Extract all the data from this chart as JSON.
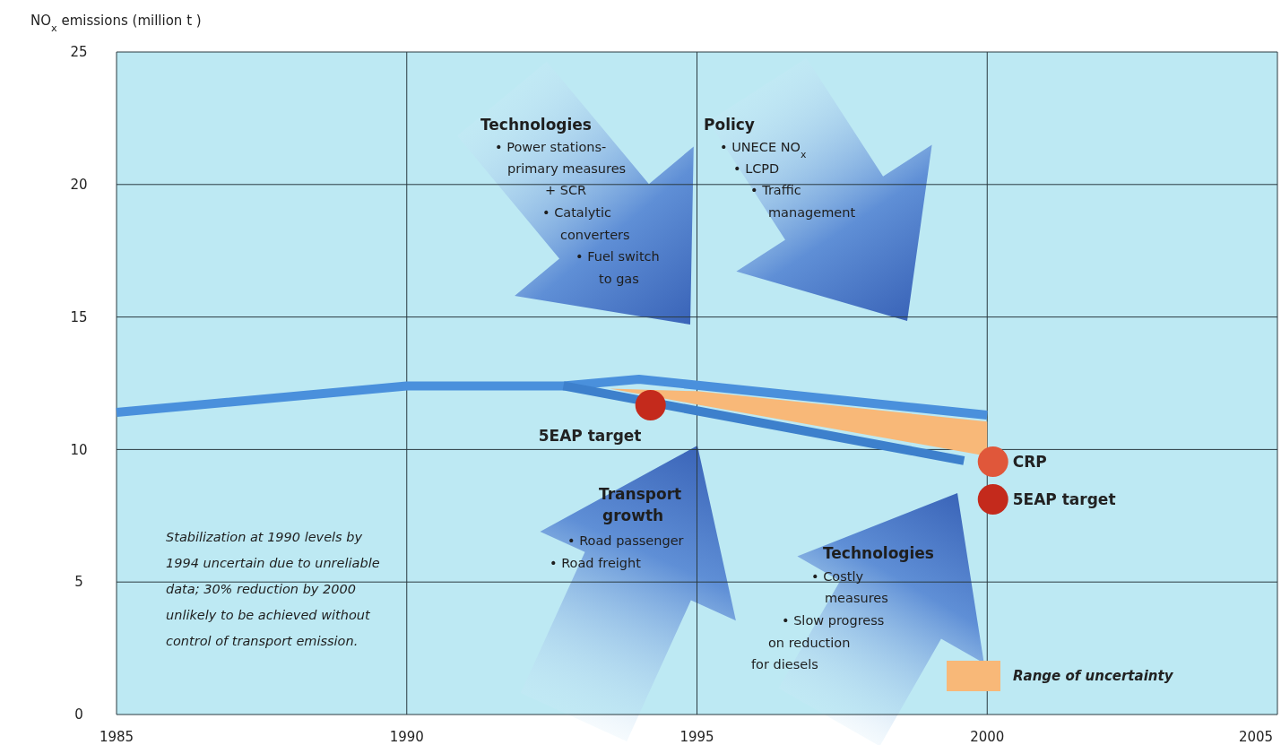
{
  "chart_data": {
    "type": "line",
    "ylabel": "NO$_{x}$ emissions (million t )",
    "xlim": [
      1985,
      2005
    ],
    "xticks": [
      1985,
      1990,
      1995,
      2000,
      2005
    ],
    "ylim": [
      0,
      25
    ],
    "yticks": [
      0,
      5,
      10,
      15,
      20,
      25
    ],
    "grid": true,
    "legend": "bottom right",
    "series": [
      {
        "type": "area",
        "name": "Range of uncertainty",
        "color": "#f8b878",
        "x": [
          1993.5,
          1995,
          2000
        ],
        "values": [
          null,
          null,
          null
        ],
        "lower": [
          12.3,
          11.7,
          9.75
        ],
        "upper": [
          12.3,
          12.2,
          11.05
        ]
      },
      {
        "color": "#4a90dc",
        "x": [
          1985,
          1990,
          1992.7,
          1994,
          2000
        ],
        "values": [
          11.4,
          12.4,
          12.4,
          12.65,
          11.3
        ]
      },
      {
        "color": "#3d80cc",
        "x": [
          1992.7,
          1999.6
        ],
        "values": [
          12.4,
          9.58
        ]
      },
      {
        "type": "scatter",
        "name": "5EAP target",
        "color": "#c42a1c",
        "x": [
          1994.2,
          2000.1
        ],
        "values": [
          11.67,
          8.12
        ]
      },
      {
        "type": "scatter",
        "name": "CRP",
        "color": "#e0573a",
        "x": [
          2000.1
        ],
        "values": [
          9.54
        ]
      }
    ],
    "annotations": [
      "Technologies\n• Power stations-\nprimary measures\n+ SCR\n• Catalytic\nconverters\n• Fuel switch\nto gas",
      "Policy\n• UNECE NO$_{x}$\n• LCPD\n• Traffic\nmanagement",
      "Transport\ngrowth\n• Road passenger\n• Road freight",
      "Technologies\n• Costly\nmeasures\n• Slow progress\non reduction\nfor diesels",
      "Stabilization at 1990 levels by\n1994 uncertain due to unreliable\ndata; 30% reduction by 2000\nunlikely to be achieved without\ncontrol of transport emission."
    ]
  }
}
